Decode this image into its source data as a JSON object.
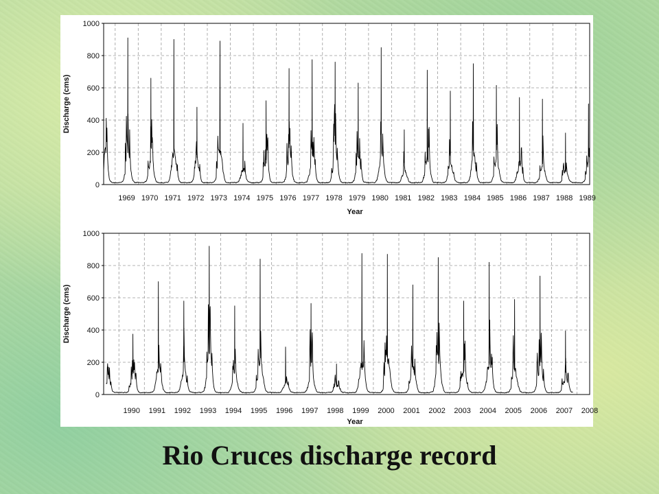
{
  "slide": {
    "title": "Rio Cruces discharge record"
  },
  "colors": {
    "background": "#b9dca2",
    "series": "#000000",
    "grid": "#9a9a9a"
  },
  "chart_data": [
    {
      "type": "line",
      "xlabel": "Year",
      "ylabel": "Discharge (cms)",
      "xlim": [
        1968.5,
        1989.6
      ],
      "ylim": [
        0,
        1000
      ],
      "yticks": [
        0,
        200,
        400,
        600,
        800,
        1000
      ],
      "xtick_labels": [
        "1969",
        "1970",
        "1971",
        "1972",
        "1973",
        "1974",
        "1975",
        "1976",
        "1977",
        "1978",
        "1979",
        "1980",
        "1981",
        "1982",
        "1983",
        "1984",
        "1985",
        "1986",
        "1987",
        "1988",
        "1989"
      ],
      "grid": true,
      "annual_peaks": {
        "years": [
          1969,
          1970,
          1971,
          1972,
          1973,
          1974,
          1975,
          1976,
          1977,
          1978,
          1979,
          1980,
          1981,
          1982,
          1983,
          1984,
          1985,
          1986,
          1987,
          1988,
          1989
        ],
        "values": [
          910,
          660,
          900,
          480,
          890,
          380,
          520,
          720,
          775,
          760,
          630,
          850,
          340,
          710,
          580,
          750,
          615,
          540,
          530,
          320,
          500
        ]
      }
    },
    {
      "type": "line",
      "xlabel": "Year",
      "ylabel": "Discharge (cms)",
      "xlim": [
        1989.4,
        2008.5
      ],
      "ylim": [
        0,
        1000
      ],
      "yticks": [
        0,
        200,
        400,
        600,
        800,
        1000
      ],
      "xtick_labels": [
        "1990",
        "1991",
        "1992",
        "1993",
        "1994",
        "1995",
        "1996",
        "1997",
        "1998",
        "1999",
        "2000",
        "2001",
        "2002",
        "2003",
        "2004",
        "2005",
        "2006",
        "2007",
        "2008"
      ],
      "grid": true,
      "annual_peaks": {
        "years": [
          1990,
          1991,
          1992,
          1993,
          1994,
          1995,
          1996,
          1997,
          1998,
          1999,
          2000,
          2001,
          2002,
          2003,
          2004,
          2005,
          2006,
          2007
        ],
        "values": [
          375,
          700,
          580,
          920,
          550,
          840,
          295,
          565,
          190,
          875,
          870,
          680,
          850,
          580,
          820,
          590,
          735,
          395
        ]
      }
    }
  ]
}
